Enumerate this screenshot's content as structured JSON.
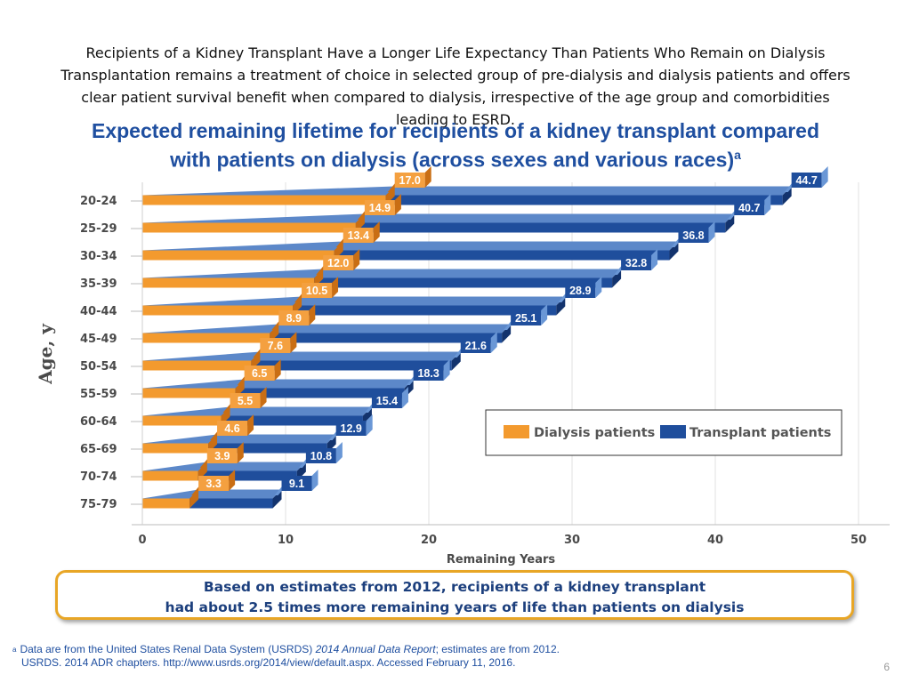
{
  "header": {
    "line1": "Recipients of a Kidney Transplant Have a Longer Life Expectancy Than Patients Who Remain on Dialysis",
    "line2": "Transplantation remains a treatment of choice in selected group of pre-dialysis and dialysis patients and offers",
    "line3": "clear patient survival benefit when compared to dialysis, irrespective of the age group and comorbidities",
    "line4": "leading to ESRD."
  },
  "chart_title": {
    "line1": "Expected remaining lifetime for recipients of a kidney transplant compared",
    "line2": "with patients on dialysis (across sexes and various races)",
    "superscript": "a"
  },
  "chart_data": {
    "type": "bar",
    "orientation": "horizontal",
    "categories": [
      "20-24",
      "25-29",
      "30-34",
      "35-39",
      "40-44",
      "45-49",
      "50-54",
      "55-59",
      "60-64",
      "65-69",
      "70-74",
      "75-79"
    ],
    "series": [
      {
        "name": "Dialysis patients",
        "values": [
          17.0,
          14.9,
          13.4,
          12.0,
          10.5,
          8.9,
          7.6,
          6.5,
          5.5,
          4.6,
          3.9,
          3.3
        ],
        "color": "#f39a2e"
      },
      {
        "name": "Transplant patients",
        "values": [
          44.7,
          40.7,
          36.8,
          32.8,
          28.9,
          25.1,
          21.6,
          18.3,
          15.4,
          12.9,
          10.8,
          9.1
        ],
        "color": "#1f4e9c"
      }
    ],
    "data_labels": {
      "dialysis": [
        "17.0",
        "14.9",
        "13.4",
        "12.0",
        "10.5",
        "8.9",
        "7.6",
        "6.5",
        "5.5",
        "4.6",
        "3.9",
        "3.3"
      ],
      "transplant": [
        "44.7",
        "40.7",
        "36.8",
        "32.8",
        "28.9",
        "25.1",
        "21.6",
        "18.3",
        "15.4",
        "12.9",
        "10.8",
        "9.1"
      ]
    },
    "x_ticks": [
      "0",
      "10",
      "20",
      "30",
      "40",
      "50"
    ],
    "xlim": [
      0,
      50
    ],
    "xlabel": "Remaining Years",
    "ylabel": "Age, y",
    "legend_position": "right-middle",
    "grid": true
  },
  "callout": {
    "line1": "Based on estimates from 2012, recipients of a kidney transplant",
    "line2": "had about 2.5 times more remaining years of life than patients on dialysis"
  },
  "footnote": {
    "marker": "a",
    "line1_pre": "Data are from the United States Renal Data System (USRDS) ",
    "line1_italic": "2014 Annual Data Report",
    "line1_post": "; estimates are from 2012.",
    "line2": "USRDS. 2014 ADR chapters. http://www.usrds.org/2014/view/default.aspx. Accessed February 11, 2016."
  },
  "page_number": "6",
  "colors": {
    "title_blue": "#1f4fa0",
    "dialysis_orange": "#f39a2e",
    "transplant_blue": "#1f4e9c",
    "callout_border": "#e8a626"
  }
}
